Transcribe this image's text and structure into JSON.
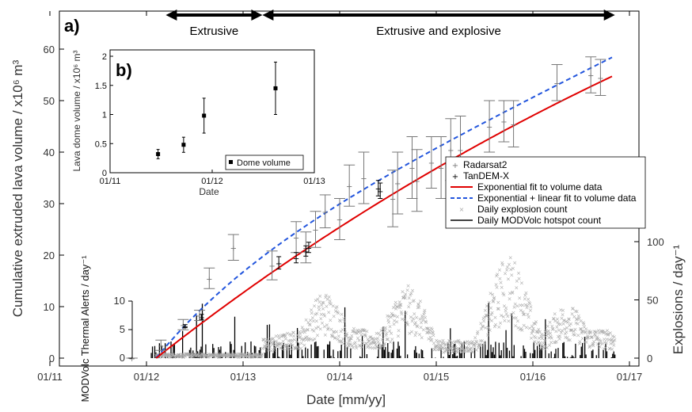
{
  "chart_data": [
    {
      "panel": "a)",
      "type": "line",
      "xlabel": "Date [mm/yy]",
      "ylabel_left": "Cumulative extruded lava volume / x10⁶ m³",
      "ylabel_right": "Explosions / day⁻¹",
      "ylabel_inset": "MODVolc Thermal Alerts / day⁻¹",
      "x_tick_labels": [
        "01/11",
        "01/12",
        "01/13",
        "01/14",
        "01/15",
        "01/16",
        "01/17"
      ],
      "x_tick_years": [
        2011,
        2012,
        2013,
        2014,
        2015,
        2016,
        2017
      ],
      "xlim": [
        2011,
        2017
      ],
      "ylim_left": [
        0,
        60
      ],
      "y_left_ticks": [
        0,
        10,
        20,
        30,
        40,
        50,
        60
      ],
      "ylim_right": [
        0,
        100
      ],
      "y_right_ticks": [
        0,
        50,
        100
      ],
      "y_hotspot_ticks": [
        0,
        5,
        10
      ],
      "phases": [
        {
          "label": "Extrusive",
          "start": 2012.2,
          "end": 2013.2
        },
        {
          "label": "Extrusive and explosive",
          "start": 2013.2,
          "end": 2016.85
        }
      ],
      "series": [
        {
          "name": "Radarsat2",
          "kind": "errorbar",
          "color": "#777777",
          "points": [
            [
              2011.85,
              0,
              0
            ],
            [
              2012.15,
              2.5,
              1.0
            ],
            [
              2012.38,
              6.5,
              1.0
            ],
            [
              2012.55,
              8.3,
              1.0
            ],
            [
              2012.65,
              15.5,
              2.0
            ],
            [
              2012.9,
              21.5,
              2.5
            ],
            [
              2013.3,
              18,
              2.8
            ],
            [
              2013.55,
              23.5,
              3.0
            ],
            [
              2013.65,
              21.5,
              3.0
            ],
            [
              2013.75,
              25,
              3.5
            ],
            [
              2013.85,
              28.5,
              3.2
            ],
            [
              2014.0,
              27,
              4.0
            ],
            [
              2014.1,
              33.5,
              4.0
            ],
            [
              2014.25,
              35,
              5.0
            ],
            [
              2014.55,
              31,
              5.5
            ],
            [
              2014.6,
              34,
              6.0
            ],
            [
              2014.75,
              37,
              6.0
            ],
            [
              2014.8,
              34.5,
              6.0
            ],
            [
              2014.95,
              38,
              5.0
            ],
            [
              2015.05,
              37,
              6.0
            ],
            [
              2015.15,
              40.5,
              6.0
            ],
            [
              2015.25,
              40.5,
              6.5
            ],
            [
              2015.55,
              45,
              5.0
            ],
            [
              2015.7,
              46,
              4.0
            ],
            [
              2015.8,
              45.5,
              4.5
            ],
            [
              2016.25,
              53.5,
              3.5
            ],
            [
              2016.6,
              55,
              3.5
            ],
            [
              2016.7,
              54.5,
              3.5
            ]
          ]
        },
        {
          "name": "TanDEM-X",
          "kind": "errorbar",
          "color": "#000000",
          "points": [
            [
              2012.4,
              6.2,
              0.3
            ],
            [
              2012.57,
              8.0,
              0.5
            ],
            [
              2013.37,
              18.5,
              1.2
            ],
            [
              2013.55,
              19.5,
              1.0
            ],
            [
              2013.65,
              20.8,
              1.0
            ],
            [
              2013.68,
              21.5,
              1.0
            ],
            [
              2014.4,
              33,
              1.5
            ],
            [
              2014.42,
              32.5,
              1.5
            ]
          ]
        },
        {
          "name": "Exponential fit to volume data",
          "kind": "line",
          "color": "#e00000",
          "style": "solid",
          "x0": 2012.1,
          "A": 137,
          "k": 0.108
        },
        {
          "name": "Exponential + linear fit to volume data",
          "kind": "line",
          "color": "#2255dd",
          "style": "dashed",
          "x0": 2012.1,
          "A": 15.2,
          "k": 0.9,
          "m": 9.2
        },
        {
          "name": "Daily explosion count",
          "kind": "scatter",
          "color": "#aaaaaa"
        },
        {
          "name": "Daily MODVolc hotspot count",
          "kind": "bars",
          "color": "#000000"
        }
      ],
      "legend_position": "right-middle"
    },
    {
      "panel": "b)",
      "type": "scatter",
      "xlabel": "Date",
      "ylabel": "Lava dome volume / x10⁶ m³",
      "x_tick_labels": [
        "01/11",
        "01/12",
        "01/13"
      ],
      "x_tick_years": [
        2011,
        2012,
        2013
      ],
      "xlim": [
        2011,
        2013
      ],
      "ylim": [
        0,
        2
      ],
      "y_ticks": [
        0,
        0.5,
        1,
        1.5,
        2
      ],
      "y_tick_labels": [
        "0",
        "0.5",
        "1",
        "1.5",
        "2"
      ],
      "series": [
        {
          "name": "Dome volume",
          "points": [
            [
              2011.47,
              0.32,
              0.08
            ],
            [
              2011.72,
              0.48,
              0.13
            ],
            [
              2011.92,
              0.98,
              0.3
            ],
            [
              2012.62,
              1.45,
              0.45
            ]
          ]
        }
      ],
      "legend_position": "bottom-right"
    }
  ]
}
